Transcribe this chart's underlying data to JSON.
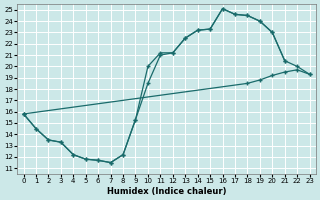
{
  "xlabel": "Humidex (Indice chaleur)",
  "bg_color": "#cce8e8",
  "line_color": "#1a6b6b",
  "grid_color": "#b0d8d8",
  "xlim": [
    -0.5,
    23.5
  ],
  "ylim": [
    10.5,
    25.5
  ],
  "xticks": [
    0,
    1,
    2,
    3,
    4,
    5,
    6,
    7,
    8,
    9,
    10,
    11,
    12,
    13,
    14,
    15,
    16,
    17,
    18,
    19,
    20,
    21,
    22,
    23
  ],
  "yticks": [
    11,
    12,
    13,
    14,
    15,
    16,
    17,
    18,
    19,
    20,
    21,
    22,
    23,
    24,
    25
  ],
  "curve1_x": [
    0,
    1,
    2,
    3,
    4,
    5,
    6,
    7,
    8,
    9,
    10,
    11,
    12,
    13,
    14,
    15,
    16,
    17,
    18,
    19,
    20,
    21
  ],
  "curve1_y": [
    15.8,
    14.5,
    13.5,
    13.3,
    12.2,
    11.8,
    11.7,
    11.5,
    12.2,
    15.3,
    20.0,
    21.2,
    21.2,
    22.5,
    23.2,
    23.3,
    25.1,
    24.6,
    24.5,
    24.0,
    23.0,
    20.5
  ],
  "curve2_x": [
    0,
    1,
    2,
    3,
    4,
    5,
    6,
    7,
    8,
    9,
    10,
    11,
    12,
    13,
    14,
    15,
    16,
    17,
    18,
    19,
    20,
    21,
    22,
    23
  ],
  "curve2_y": [
    15.8,
    14.5,
    13.5,
    13.3,
    12.2,
    11.8,
    11.7,
    11.5,
    12.2,
    15.3,
    18.5,
    21.0,
    21.2,
    22.5,
    23.2,
    23.3,
    25.1,
    24.6,
    24.5,
    24.0,
    23.0,
    20.5,
    20.0,
    19.3
  ],
  "curve3_x": [
    0,
    18,
    19,
    20,
    21,
    22,
    23
  ],
  "curve3_y": [
    15.8,
    18.5,
    18.8,
    19.2,
    19.5,
    19.7,
    19.3
  ]
}
